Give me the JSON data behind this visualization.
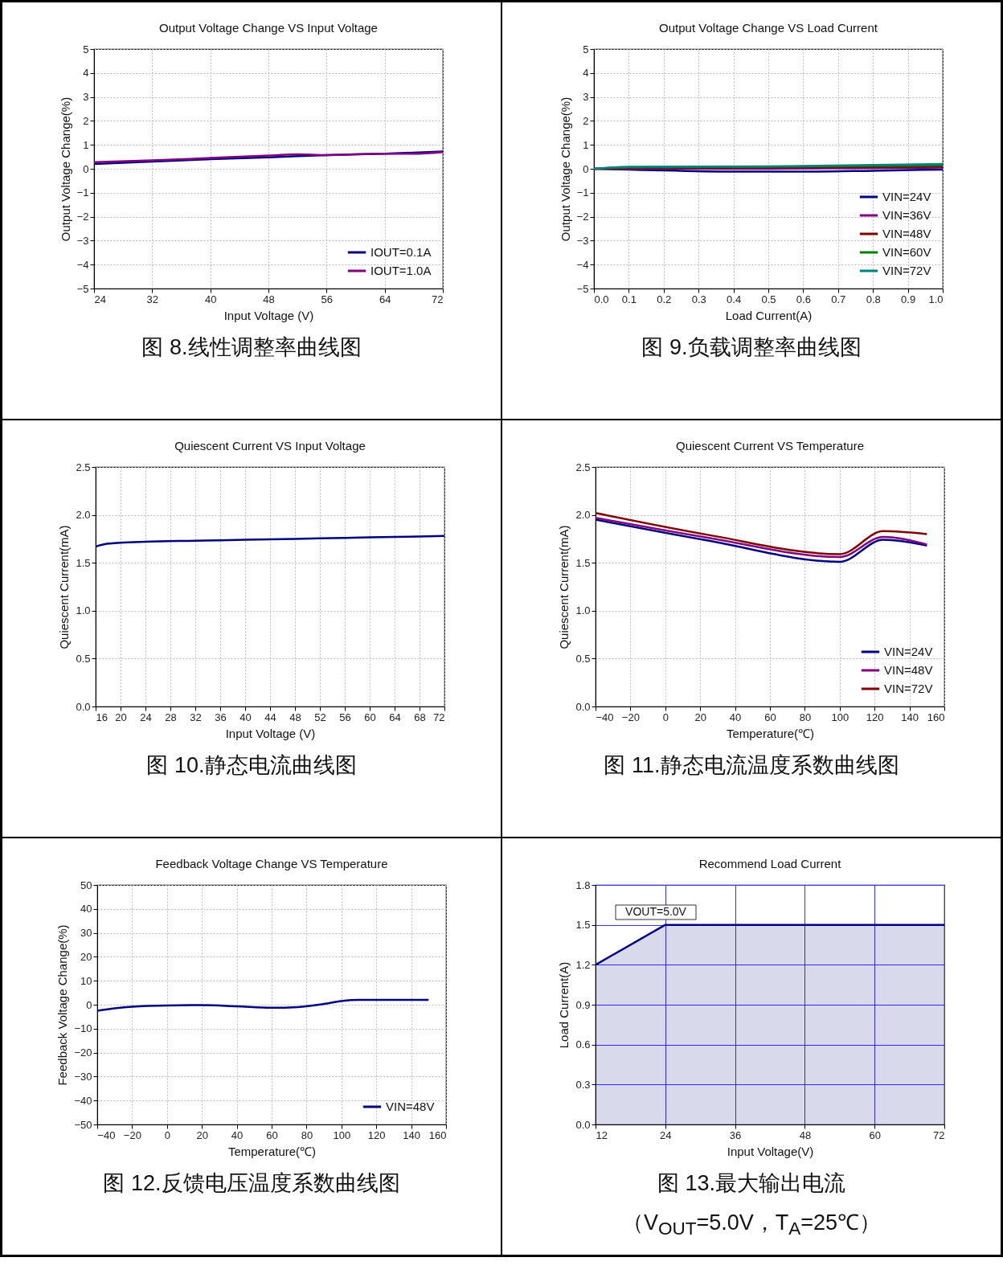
{
  "chart_data": [
    {
      "type": "line",
      "title": "Output Voltage Change VS Input Voltage",
      "xlabel": "Input Voltage (V)",
      "ylabel": "Output Voltage Change(%)",
      "xlim": [
        24,
        72
      ],
      "xticks": [
        24,
        32,
        40,
        48,
        56,
        64,
        72
      ],
      "ylim": [
        -5,
        5
      ],
      "yticks": [
        -5,
        -4,
        -3,
        -2,
        -1,
        0,
        1,
        2,
        3,
        4,
        5
      ],
      "grid": true,
      "legend": "bottom right",
      "annotations": [
        "图 8.线性调整率曲线图"
      ],
      "series": [
        {
          "name": "IOUT=0.1A",
          "color": "#000080",
          "x": [
            24,
            32,
            40,
            48,
            56,
            64,
            72
          ],
          "values": [
            0.2,
            0.3,
            0.4,
            0.48,
            0.57,
            0.63,
            0.72
          ]
        },
        {
          "name": "IOUT=1.0A",
          "color": "#800080",
          "x": [
            24,
            32,
            40,
            48,
            52,
            56,
            64,
            68,
            72
          ],
          "values": [
            0.28,
            0.35,
            0.45,
            0.55,
            0.6,
            0.57,
            0.63,
            0.63,
            0.7
          ]
        }
      ]
    },
    {
      "type": "line",
      "title": "Output Voltage Change VS Load Current",
      "xlabel": "Load Current(A)",
      "ylabel": "Output Voltage Change(%)",
      "xlim": [
        0,
        1
      ],
      "xticks": [
        {
          "value": 0,
          "label": "0.0"
        },
        0.1,
        0.2,
        0.3,
        0.4,
        0.5,
        0.6,
        0.7,
        0.8,
        0.9,
        {
          "value": 1,
          "label": "1.0"
        }
      ],
      "ylim": [
        -5,
        5
      ],
      "yticks": [
        -5,
        -4,
        -3,
        -2,
        -1,
        0,
        1,
        2,
        3,
        4,
        5
      ],
      "grid": true,
      "legend": "bottom right",
      "annotations": [
        "图 9.负载调整率曲线图"
      ],
      "series": [
        {
          "name": "VIN=24V",
          "color": "#000080",
          "x": [
            0,
            0.1,
            0.4,
            0.6,
            0.8,
            1
          ],
          "values": [
            0,
            -0.03,
            -0.12,
            -0.12,
            -0.08,
            -0.03
          ]
        },
        {
          "name": "VIN=36V",
          "color": "#800080",
          "x": [
            0,
            0.1,
            0.5,
            1
          ],
          "values": [
            0,
            0,
            0,
            0.05
          ]
        },
        {
          "name": "VIN=48V",
          "color": "#800000",
          "x": [
            0,
            0.1,
            0.5,
            1
          ],
          "values": [
            0,
            0.03,
            0.05,
            0.1
          ]
        },
        {
          "name": "VIN=60V",
          "color": "#008000",
          "x": [
            0,
            0.1,
            0.5,
            1
          ],
          "values": [
            0,
            0.06,
            0.08,
            0.15
          ]
        },
        {
          "name": "VIN=72V",
          "color": "#008080",
          "x": [
            0,
            0.1,
            0.5,
            1
          ],
          "values": [
            0,
            0.08,
            0.1,
            0.2
          ]
        }
      ]
    },
    {
      "type": "line",
      "title": "Quiescent Current VS Input Voltage",
      "xlabel": "Input Voltage (V)",
      "ylabel": "Quiescent Current(mA)",
      "xlim": [
        16,
        72
      ],
      "xticks": [
        16,
        20,
        24,
        28,
        32,
        36,
        40,
        44,
        48,
        52,
        56,
        60,
        64,
        68,
        72
      ],
      "ylim": [
        0,
        2.5
      ],
      "yticks": [
        {
          "value": 0,
          "label": "0.0"
        },
        0.5,
        {
          "value": 1,
          "label": "1.0"
        },
        1.5,
        {
          "value": 2,
          "label": "2.0"
        },
        2.5
      ],
      "grid": true,
      "annotations": [
        "图 10.静态电流曲线图"
      ],
      "series": [
        {
          "color": "#000080",
          "x": [
            16,
            18,
            20,
            24,
            32,
            40,
            48,
            56,
            64,
            72
          ],
          "values": [
            1.67,
            1.7,
            1.71,
            1.72,
            1.73,
            1.74,
            1.75,
            1.76,
            1.77,
            1.78
          ]
        }
      ]
    },
    {
      "type": "line",
      "title": "Quiescent Current VS Temperature",
      "xlabel": "Temperature(℃)",
      "ylabel": "Quiescent Current(mA)",
      "xlim": [
        -40,
        160
      ],
      "xticks": [
        -40,
        -20,
        0,
        20,
        40,
        60,
        80,
        100,
        120,
        140,
        160
      ],
      "ylim": [
        0,
        2.5
      ],
      "yticks": [
        {
          "value": 0,
          "label": "0.0"
        },
        0.5,
        {
          "value": 1,
          "label": "1.0"
        },
        1.5,
        {
          "value": 2,
          "label": "2.0"
        },
        2.5
      ],
      "grid": true,
      "legend": "bottom right",
      "annotations": [
        "图 11.静态电流温度系数曲线图"
      ],
      "series": [
        {
          "name": "VIN=24V",
          "color": "#000080",
          "x": [
            -40,
            25,
            100,
            125,
            150
          ],
          "values": [
            1.95,
            1.73,
            1.51,
            1.74,
            1.68
          ]
        },
        {
          "name": "VIN=48V",
          "color": "#800080",
          "x": [
            -40,
            25,
            100,
            125,
            150
          ],
          "values": [
            1.97,
            1.76,
            1.56,
            1.77,
            1.69
          ]
        },
        {
          "name": "VIN=72V",
          "color": "#800000",
          "x": [
            -40,
            25,
            100,
            125,
            150
          ],
          "values": [
            2.02,
            1.79,
            1.59,
            1.83,
            1.8
          ]
        }
      ]
    },
    {
      "type": "line",
      "title": "Feedback Voltage Change VS Temperature",
      "xlabel": "Temperature(℃)",
      "ylabel": "Feedback Voltage Change(%)",
      "xlim": [
        -40,
        160
      ],
      "xticks": [
        -40,
        -20,
        0,
        20,
        40,
        60,
        80,
        100,
        120,
        140,
        160
      ],
      "ylim": [
        -50,
        50
      ],
      "yticks": [
        -50,
        -40,
        -30,
        -20,
        -10,
        0,
        10,
        20,
        30,
        40,
        50
      ],
      "grid": true,
      "legend": "bottom right",
      "annotations": [
        "图 12.反馈电压温度系数曲线图"
      ],
      "series": [
        {
          "name": "VIN=48V",
          "color": "#000080",
          "x": [
            -40,
            -30,
            -20,
            0,
            20,
            40,
            60,
            75,
            90,
            100,
            110,
            150
          ],
          "values": [
            -2.5,
            -1.5,
            -0.8,
            -0.3,
            -0.2,
            -0.7,
            -1.3,
            -1,
            0.3,
            1.5,
            2,
            2
          ]
        }
      ]
    },
    {
      "type": "area",
      "title": "Recommend Load Current",
      "xlabel": "Input Voltage(V)",
      "ylabel": "Load Current(A)",
      "xlim": [
        12,
        72
      ],
      "xticks": [
        12,
        24,
        36,
        48,
        60,
        72
      ],
      "ylim": [
        0,
        1.8
      ],
      "yticks": [
        {
          "value": 0,
          "label": "0.0"
        },
        0.3,
        0.6,
        0.9,
        1.2,
        1.5,
        1.8
      ],
      "grid": true,
      "annotations": [
        "图 13.最大输出电流",
        "（V$_{OUT}$=5.0V，T$_{A}$=25℃）"
      ],
      "series": [
        {
          "name": "VOUT=5.0V",
          "color": "#000080",
          "x": [
            12,
            24,
            72
          ],
          "values": [
            1.2,
            1.5,
            1.5
          ]
        }
      ]
    }
  ]
}
